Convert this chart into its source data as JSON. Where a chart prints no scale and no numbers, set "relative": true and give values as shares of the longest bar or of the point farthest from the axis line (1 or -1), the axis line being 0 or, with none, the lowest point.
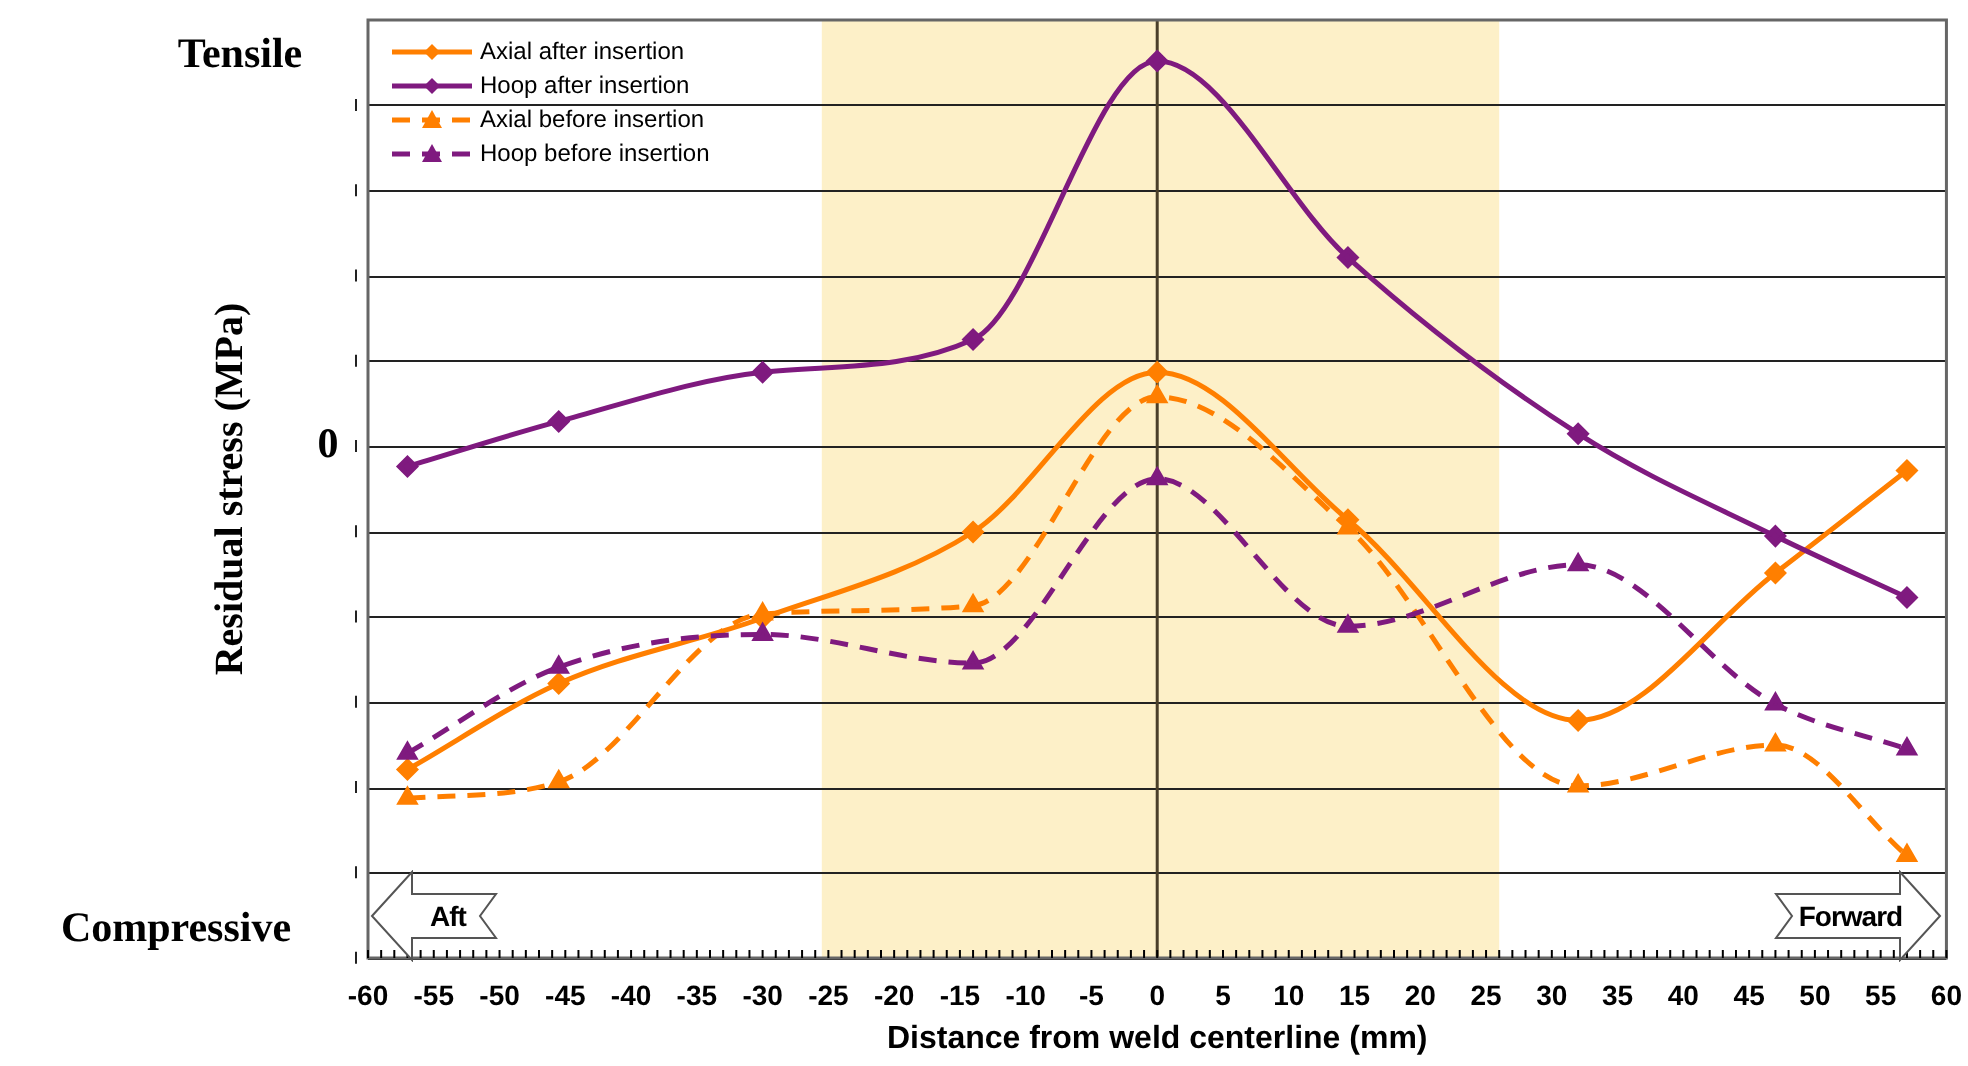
{
  "chart_data": {
    "type": "line",
    "relative": true,
    "xlabel": "Distance from weld centerline (mm)",
    "ylabel": "Residual stress (MPa)",
    "x": [
      -57,
      -45.5,
      -30,
      -14,
      0,
      14.5,
      32,
      47,
      57
    ],
    "xlim": [
      -60,
      60
    ],
    "xticks": [
      -60,
      -55,
      -50,
      -45,
      -40,
      -35,
      -30,
      -25,
      -20,
      -15,
      -10,
      -5,
      0,
      5,
      10,
      15,
      20,
      25,
      30,
      35,
      40,
      45,
      50,
      55,
      60
    ],
    "series": [
      {
        "name": "Axial after insertion",
        "color": "#ff7f00",
        "marker": "diamond",
        "line_style": "solid",
        "values": [
          -0.79,
          -0.58,
          -0.42,
          -0.21,
          0.18,
          -0.18,
          -0.67,
          -0.31,
          -0.06
        ]
      },
      {
        "name": "Hoop after insertion",
        "color": "#7f1a7f",
        "marker": "diamond",
        "line_style": "solid",
        "values": [
          -0.05,
          0.06,
          0.18,
          0.26,
          0.94,
          0.46,
          0.03,
          -0.22,
          -0.37
        ]
      },
      {
        "name": "Axial before insertion",
        "color": "#ff7f00",
        "marker": "triangle",
        "line_style": "dashed",
        "values": [
          -0.86,
          -0.82,
          -0.41,
          -0.39,
          0.12,
          -0.2,
          -0.83,
          -0.73,
          -1
        ]
      },
      {
        "name": "Hoop before insertion",
        "color": "#7f1a7f",
        "marker": "triangle",
        "line_style": "dashed",
        "values": [
          -0.75,
          -0.54,
          -0.46,
          -0.53,
          -0.08,
          -0.44,
          -0.29,
          -0.63,
          -0.74
        ]
      }
    ],
    "bands": [
      {
        "axis": "x",
        "from": -25.5,
        "to": 26,
        "color": "#fdf0c8"
      }
    ],
    "ref_lines": [
      {
        "axis": "x",
        "value": 0,
        "color": "#4a3f2a"
      }
    ],
    "annotations": [
      "Tensile",
      "0",
      "Compressive",
      "Aft",
      "Forward"
    ],
    "grid": "y",
    "legend": "top left"
  }
}
